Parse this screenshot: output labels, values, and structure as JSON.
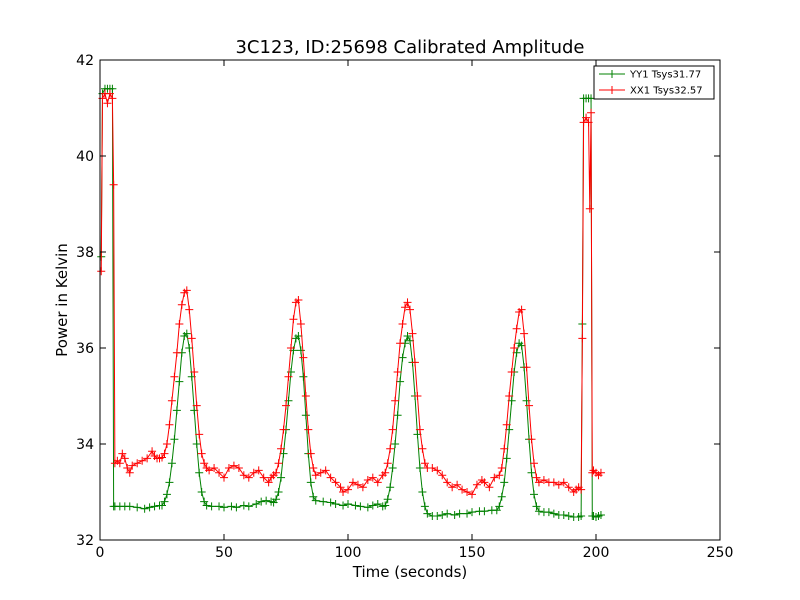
{
  "chart_data": {
    "type": "line",
    "title": "3C123, ID:25698 Calibrated Amplitude",
    "xlabel": "Time (seconds)",
    "ylabel": "Power in Kelvin",
    "xlim": [
      0,
      250
    ],
    "ylim": [
      32,
      42
    ],
    "xticks": [
      0,
      50,
      100,
      150,
      200,
      250
    ],
    "yticks": [
      32,
      34,
      36,
      38,
      40,
      42
    ],
    "grid": false,
    "legend_position": "top-right",
    "marker": "plus",
    "series": [
      {
        "name": "YY1 Tsys31.77",
        "color": "#008000",
        "points": [
          [
            0.5,
            37.9
          ],
          [
            1,
            41.3
          ],
          [
            2,
            41.4
          ],
          [
            3,
            41.4
          ],
          [
            4,
            41.4
          ],
          [
            5,
            41.4
          ],
          [
            5.5,
            32.7
          ],
          [
            6,
            32.7
          ],
          [
            8,
            32.7
          ],
          [
            10,
            32.7
          ],
          [
            12,
            32.7
          ],
          [
            15,
            32.68
          ],
          [
            18,
            32.65
          ],
          [
            20,
            32.68
          ],
          [
            22,
            32.7
          ],
          [
            24,
            32.72
          ],
          [
            25,
            32.72
          ],
          [
            26,
            32.8
          ],
          [
            27,
            32.95
          ],
          [
            28,
            33.2
          ],
          [
            29,
            33.6
          ],
          [
            30,
            34.1
          ],
          [
            31,
            34.7
          ],
          [
            32,
            35.3
          ],
          [
            33,
            35.9
          ],
          [
            34,
            36.25
          ],
          [
            35,
            36.3
          ],
          [
            36,
            36.0
          ],
          [
            37,
            35.4
          ],
          [
            38,
            34.7
          ],
          [
            39,
            34.0
          ],
          [
            40,
            33.4
          ],
          [
            41,
            33.0
          ],
          [
            42,
            32.8
          ],
          [
            43,
            32.72
          ],
          [
            45,
            32.7
          ],
          [
            48,
            32.7
          ],
          [
            50,
            32.68
          ],
          [
            53,
            32.7
          ],
          [
            55,
            32.68
          ],
          [
            58,
            32.72
          ],
          [
            60,
            32.7
          ],
          [
            63,
            32.75
          ],
          [
            65,
            32.8
          ],
          [
            67,
            32.82
          ],
          [
            69,
            32.8
          ],
          [
            70,
            32.78
          ],
          [
            71,
            32.85
          ],
          [
            72,
            33.0
          ],
          [
            73,
            33.3
          ],
          [
            74,
            33.8
          ],
          [
            75,
            34.3
          ],
          [
            76,
            34.9
          ],
          [
            77,
            35.5
          ],
          [
            78,
            35.95
          ],
          [
            79,
            36.2
          ],
          [
            80,
            36.25
          ],
          [
            81,
            35.95
          ],
          [
            82,
            35.4
          ],
          [
            83,
            34.6
          ],
          [
            84,
            33.8
          ],
          [
            85,
            33.2
          ],
          [
            86,
            32.9
          ],
          [
            87,
            32.82
          ],
          [
            90,
            32.8
          ],
          [
            93,
            32.78
          ],
          [
            95,
            32.75
          ],
          [
            98,
            32.72
          ],
          [
            100,
            32.75
          ],
          [
            103,
            32.72
          ],
          [
            105,
            32.7
          ],
          [
            108,
            32.68
          ],
          [
            110,
            32.72
          ],
          [
            112,
            32.75
          ],
          [
            114,
            32.7
          ],
          [
            115,
            32.72
          ],
          [
            116,
            32.85
          ],
          [
            117,
            33.1
          ],
          [
            118,
            33.5
          ],
          [
            119,
            34.0
          ],
          [
            120,
            34.6
          ],
          [
            121,
            35.3
          ],
          [
            122,
            35.8
          ],
          [
            123,
            36.1
          ],
          [
            124,
            36.25
          ],
          [
            125,
            36.15
          ],
          [
            126,
            35.7
          ],
          [
            127,
            35.0
          ],
          [
            128,
            34.2
          ],
          [
            129,
            33.5
          ],
          [
            130,
            33.0
          ],
          [
            131,
            32.7
          ],
          [
            132,
            32.55
          ],
          [
            134,
            32.5
          ],
          [
            136,
            32.5
          ],
          [
            138,
            32.52
          ],
          [
            140,
            32.55
          ],
          [
            143,
            32.52
          ],
          [
            145,
            32.55
          ],
          [
            148,
            32.55
          ],
          [
            150,
            32.58
          ],
          [
            153,
            32.6
          ],
          [
            155,
            32.6
          ],
          [
            158,
            32.62
          ],
          [
            160,
            32.62
          ],
          [
            161,
            32.7
          ],
          [
            162,
            32.9
          ],
          [
            163,
            33.2
          ],
          [
            164,
            33.7
          ],
          [
            165,
            34.3
          ],
          [
            166,
            34.9
          ],
          [
            167,
            35.5
          ],
          [
            168,
            35.9
          ],
          [
            169,
            36.1
          ],
          [
            170,
            36.05
          ],
          [
            171,
            35.6
          ],
          [
            172,
            34.9
          ],
          [
            173,
            34.1
          ],
          [
            174,
            33.4
          ],
          [
            175,
            32.95
          ],
          [
            176,
            32.7
          ],
          [
            177,
            32.6
          ],
          [
            179,
            32.58
          ],
          [
            181,
            32.58
          ],
          [
            183,
            32.55
          ],
          [
            185,
            32.52
          ],
          [
            187,
            32.52
          ],
          [
            189,
            32.5
          ],
          [
            191,
            32.48
          ],
          [
            193,
            32.48
          ],
          [
            194,
            32.5
          ],
          [
            194.5,
            36.5
          ],
          [
            195,
            41.2
          ],
          [
            196,
            41.2
          ],
          [
            197,
            41.2
          ],
          [
            198,
            41.2
          ],
          [
            198.5,
            32.5
          ],
          [
            199,
            32.5
          ],
          [
            200,
            32.48
          ],
          [
            201,
            32.5
          ],
          [
            202,
            32.52
          ]
        ]
      },
      {
        "name": "XX1 Tsys32.57",
        "color": "#ff0000",
        "points": [
          [
            0.5,
            37.6
          ],
          [
            1,
            41.2
          ],
          [
            2,
            41.3
          ],
          [
            3,
            41.1
          ],
          [
            4,
            41.3
          ],
          [
            5,
            41.2
          ],
          [
            5.5,
            39.4
          ],
          [
            6,
            33.6
          ],
          [
            7,
            33.65
          ],
          [
            8,
            33.6
          ],
          [
            9,
            33.8
          ],
          [
            10,
            33.7
          ],
          [
            11,
            33.5
          ],
          [
            12,
            33.4
          ],
          [
            13,
            33.55
          ],
          [
            15,
            33.6
          ],
          [
            17,
            33.65
          ],
          [
            19,
            33.7
          ],
          [
            21,
            33.85
          ],
          [
            22,
            33.75
          ],
          [
            23,
            33.7
          ],
          [
            24,
            33.7
          ],
          [
            25,
            33.72
          ],
          [
            26,
            33.8
          ],
          [
            27,
            34.0
          ],
          [
            28,
            34.4
          ],
          [
            29,
            34.9
          ],
          [
            30,
            35.4
          ],
          [
            31,
            35.9
          ],
          [
            32,
            36.5
          ],
          [
            33,
            36.9
          ],
          [
            34,
            37.15
          ],
          [
            35,
            37.2
          ],
          [
            36,
            36.8
          ],
          [
            37,
            36.2
          ],
          [
            38,
            35.5
          ],
          [
            39,
            34.8
          ],
          [
            40,
            34.2
          ],
          [
            41,
            33.8
          ],
          [
            42,
            33.6
          ],
          [
            43,
            33.5
          ],
          [
            44,
            33.45
          ],
          [
            46,
            33.5
          ],
          [
            48,
            33.4
          ],
          [
            50,
            33.3
          ],
          [
            52,
            33.5
          ],
          [
            54,
            33.55
          ],
          [
            56,
            33.5
          ],
          [
            58,
            33.35
          ],
          [
            60,
            33.3
          ],
          [
            62,
            33.4
          ],
          [
            64,
            33.45
          ],
          [
            66,
            33.3
          ],
          [
            68,
            33.2
          ],
          [
            69,
            33.3
          ],
          [
            70,
            33.35
          ],
          [
            71,
            33.4
          ],
          [
            72,
            33.6
          ],
          [
            73,
            33.9
          ],
          [
            74,
            34.3
          ],
          [
            75,
            34.8
          ],
          [
            76,
            35.4
          ],
          [
            77,
            36.0
          ],
          [
            78,
            36.6
          ],
          [
            79,
            36.95
          ],
          [
            80,
            37.0
          ],
          [
            81,
            36.5
          ],
          [
            82,
            35.8
          ],
          [
            83,
            35.0
          ],
          [
            84,
            34.3
          ],
          [
            85,
            33.8
          ],
          [
            86,
            33.5
          ],
          [
            87,
            33.35
          ],
          [
            89,
            33.4
          ],
          [
            91,
            33.45
          ],
          [
            93,
            33.3
          ],
          [
            95,
            33.2
          ],
          [
            97,
            33.1
          ],
          [
            98,
            33.0
          ],
          [
            100,
            33.05
          ],
          [
            102,
            33.2
          ],
          [
            104,
            33.15
          ],
          [
            106,
            33.1
          ],
          [
            108,
            33.25
          ],
          [
            110,
            33.3
          ],
          [
            112,
            33.2
          ],
          [
            114,
            33.35
          ],
          [
            115,
            33.4
          ],
          [
            116,
            33.6
          ],
          [
            117,
            33.9
          ],
          [
            118,
            34.3
          ],
          [
            119,
            34.9
          ],
          [
            120,
            35.5
          ],
          [
            121,
            36.1
          ],
          [
            122,
            36.5
          ],
          [
            123,
            36.85
          ],
          [
            124,
            36.95
          ],
          [
            125,
            36.8
          ],
          [
            126,
            36.3
          ],
          [
            127,
            35.7
          ],
          [
            128,
            35.0
          ],
          [
            129,
            34.3
          ],
          [
            130,
            33.9
          ],
          [
            131,
            33.6
          ],
          [
            132,
            33.5
          ],
          [
            134,
            33.5
          ],
          [
            136,
            33.45
          ],
          [
            138,
            33.35
          ],
          [
            140,
            33.2
          ],
          [
            142,
            33.1
          ],
          [
            144,
            33.15
          ],
          [
            146,
            33.05
          ],
          [
            148,
            33.0
          ],
          [
            150,
            32.95
          ],
          [
            152,
            33.15
          ],
          [
            154,
            33.25
          ],
          [
            155,
            33.2
          ],
          [
            157,
            33.1
          ],
          [
            159,
            33.3
          ],
          [
            161,
            33.35
          ],
          [
            162,
            33.5
          ],
          [
            163,
            33.9
          ],
          [
            164,
            34.4
          ],
          [
            165,
            35.0
          ],
          [
            166,
            35.5
          ],
          [
            167,
            36.0
          ],
          [
            168,
            36.4
          ],
          [
            169,
            36.75
          ],
          [
            170,
            36.8
          ],
          [
            171,
            36.3
          ],
          [
            172,
            35.6
          ],
          [
            173,
            34.8
          ],
          [
            174,
            34.1
          ],
          [
            175,
            33.6
          ],
          [
            176,
            33.3
          ],
          [
            177,
            33.2
          ],
          [
            179,
            33.25
          ],
          [
            181,
            33.2
          ],
          [
            183,
            33.2
          ],
          [
            185,
            33.15
          ],
          [
            187,
            33.2
          ],
          [
            189,
            33.1
          ],
          [
            191,
            33.0
          ],
          [
            192,
            33.05
          ],
          [
            193,
            33.1
          ],
          [
            194,
            33.05
          ],
          [
            194.5,
            36.2
          ],
          [
            195,
            40.7
          ],
          [
            196,
            40.8
          ],
          [
            197,
            40.7
          ],
          [
            197.5,
            38.9
          ],
          [
            198,
            40.9
          ],
          [
            198.5,
            33.4
          ],
          [
            199,
            33.45
          ],
          [
            200,
            33.4
          ],
          [
            201,
            33.35
          ],
          [
            202,
            33.4
          ]
        ]
      }
    ]
  }
}
